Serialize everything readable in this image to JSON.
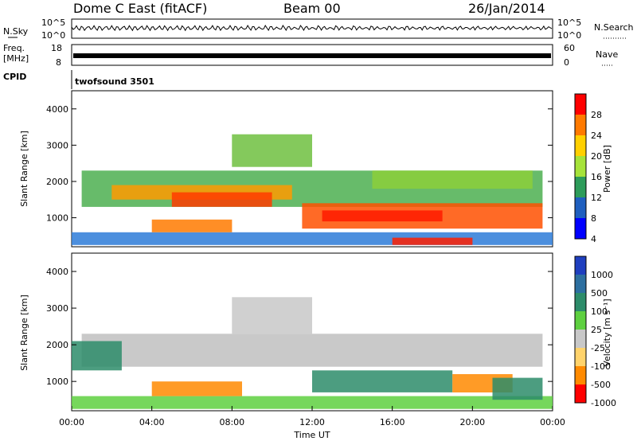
{
  "header": {
    "station": "Dome C East (fitACF)",
    "beam": "Beam 00",
    "date": "26/Jan/2014"
  },
  "side_labels": {
    "nsky": "N.Sky",
    "freq": "Freq.",
    "freq_unit": "[MHz]",
    "cpid": "CPID",
    "nsearch": "N.Search",
    "nave": "Nave"
  },
  "cpid_name": "twofsound 3501",
  "chart_data": [
    {
      "name": "noise",
      "type": "line",
      "left_ticks": [
        "10^5",
        "10^0"
      ],
      "right_ticks": [
        "10^5",
        "10^0"
      ]
    },
    {
      "name": "frequency-nave",
      "type": "line",
      "left_ticks": [
        "18",
        "8"
      ],
      "right_ticks": [
        "60",
        "0"
      ]
    },
    {
      "name": "power",
      "type": "heatmap",
      "ylabel": "Slant Range [km]",
      "yticks": [
        1000,
        2000,
        3000,
        4000
      ],
      "ylim": [
        200,
        4500
      ],
      "xlim": [
        0,
        24
      ],
      "colorbar": {
        "label": "Power [dB]",
        "ticks": [
          "28",
          "24",
          "20",
          "16",
          "12",
          "8",
          "4"
        ],
        "colors": [
          "#ff0000",
          "#ff7a00",
          "#ffd000",
          "#a6e33a",
          "#2d9c5a",
          "#1f5fbf",
          "#0000ff"
        ]
      },
      "bands": [
        {
          "t0": 0.0,
          "t1": 24.0,
          "r0": 250,
          "r1": 600,
          "color": "#2d7bd8"
        },
        {
          "t0": 0.5,
          "t1": 23.5,
          "r0": 1300,
          "r1": 2300,
          "color": "#4caf50"
        },
        {
          "t0": 2.0,
          "t1": 11.0,
          "r0": 1500,
          "r1": 1900,
          "color": "#ff9a00"
        },
        {
          "t0": 5.0,
          "t1": 10.0,
          "r0": 1300,
          "r1": 1700,
          "color": "#ff3b00"
        },
        {
          "t0": 11.5,
          "t1": 23.5,
          "r0": 700,
          "r1": 1400,
          "color": "#ff5000"
        },
        {
          "t0": 12.5,
          "t1": 18.5,
          "r0": 900,
          "r1": 1200,
          "color": "#ff1a00"
        },
        {
          "t0": 8.0,
          "t1": 12.0,
          "r0": 2400,
          "r1": 3300,
          "color": "#6fbf3f"
        },
        {
          "t0": 4.0,
          "t1": 8.0,
          "r0": 600,
          "r1": 950,
          "color": "#ff7a00"
        },
        {
          "t0": 15.0,
          "t1": 23.0,
          "r0": 1800,
          "r1": 2300,
          "color": "#8ccf3a"
        },
        {
          "t0": 16.0,
          "t1": 20.0,
          "r0": 250,
          "r1": 450,
          "color": "#ff2000"
        }
      ]
    },
    {
      "name": "velocity",
      "type": "heatmap",
      "ylabel": "Slant Range [km]",
      "yticks": [
        1000,
        2000,
        3000,
        4000
      ],
      "ylim": [
        200,
        4500
      ],
      "xlim": [
        0,
        24
      ],
      "xlabel": "Time UT",
      "xticks": [
        "00:00",
        "04:00",
        "08:00",
        "12:00",
        "16:00",
        "20:00",
        "00:00"
      ],
      "colorbar": {
        "label": "Velocity [m s⁻¹]",
        "ticks": [
          "1000",
          "500",
          "100",
          "25",
          "-25",
          "-100",
          "-500",
          "-1000"
        ],
        "colors": [
          "#1f3fbf",
          "#2d6fa0",
          "#2d8c6a",
          "#5ed040",
          "#c8c8c8",
          "#ffd36b",
          "#ff8a00",
          "#ff0000"
        ]
      },
      "bands": [
        {
          "t0": 0.0,
          "t1": 24.0,
          "r0": 250,
          "r1": 600,
          "color": "#5ed040"
        },
        {
          "t0": 0.5,
          "t1": 23.5,
          "r0": 1400,
          "r1": 2300,
          "color": "#c0c0c0"
        },
        {
          "t0": 8.0,
          "t1": 12.0,
          "r0": 2300,
          "r1": 3300,
          "color": "#c8c8c8"
        },
        {
          "t0": 4.0,
          "t1": 8.5,
          "r0": 600,
          "r1": 1000,
          "color": "#ff8a00"
        },
        {
          "t0": 12.0,
          "t1": 19.0,
          "r0": 700,
          "r1": 1300,
          "color": "#2d8c6a"
        },
        {
          "t0": 19.0,
          "t1": 22.0,
          "r0": 700,
          "r1": 1200,
          "color": "#ff8a00"
        },
        {
          "t0": 0.0,
          "t1": 2.5,
          "r0": 1300,
          "r1": 2100,
          "color": "#2d8c6a"
        },
        {
          "t0": 21.0,
          "t1": 23.5,
          "r0": 500,
          "r1": 1100,
          "color": "#2d8c6a"
        }
      ]
    }
  ]
}
